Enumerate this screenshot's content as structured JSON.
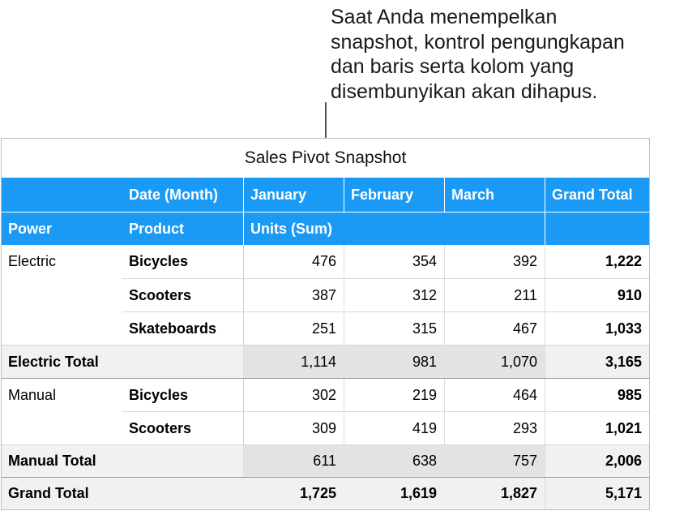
{
  "callout": {
    "lines": [
      "Saat Anda menempelkan",
      "snapshot, kontrol pengungkapan",
      "dan baris serta kolom yang",
      "disembunyikan akan dihapus."
    ]
  },
  "table": {
    "title": "Sales Pivot Snapshot",
    "header_row_1": [
      "",
      "Date (Month)",
      "January",
      "February",
      "March",
      "Grand Total"
    ],
    "header_row_2": [
      "Power",
      "Product",
      "Units (Sum)",
      "",
      "",
      ""
    ],
    "rows": [
      {
        "power": "Electric",
        "product": "Bicycles",
        "values": [
          "476",
          "354",
          "392"
        ],
        "total": "1,222"
      },
      {
        "power": "",
        "product": "Scooters",
        "values": [
          "387",
          "312",
          "211"
        ],
        "total": "910"
      },
      {
        "power": "",
        "product": "Skateboards",
        "values": [
          "251",
          "315",
          "467"
        ],
        "total": "1,033"
      },
      {
        "power": "Electric Total",
        "product": "",
        "values": [
          "1,114",
          "981",
          "1,070"
        ],
        "total": "3,165"
      },
      {
        "power": "Manual",
        "product": "Bicycles",
        "values": [
          "302",
          "219",
          "464"
        ],
        "total": "985"
      },
      {
        "power": "",
        "product": "Scooters",
        "values": [
          "309",
          "419",
          "293"
        ],
        "total": "1,021"
      },
      {
        "power": "Manual Total",
        "product": "",
        "values": [
          "611",
          "638",
          "757"
        ],
        "total": "2,006"
      },
      {
        "power": "Grand Total",
        "product": "",
        "values": [
          "1,725",
          "1,619",
          "1,827"
        ],
        "total": "5,171"
      }
    ]
  },
  "colors": {
    "header_blue": "#1b9af5",
    "subtotal_gray": "#f1f1f1",
    "subtotal_value_gray": "#e3e3e3"
  }
}
